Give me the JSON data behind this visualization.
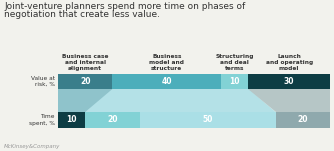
{
  "title_line1": "Joint-venture planners spend more time on phases of",
  "title_line2": "negotiation that create less value.",
  "title_fontsize": 6.5,
  "watermark": "McKinsey&Company",
  "column_labels": [
    "Business case\nand internal\nalignment",
    "Business\nmodel and\nstructure",
    "Structuring\nand deal\nterms",
    "Launch\nand operating\nmodel"
  ],
  "row_labels": [
    "Value at\nrisk, %",
    "Time\nspent, %"
  ],
  "value_at_risk": [
    20,
    40,
    10,
    30
  ],
  "time_spent": [
    10,
    20,
    50,
    20
  ],
  "var_colors": [
    "#3a7e8b",
    "#4caebb",
    "#82d2d5",
    "#0d3d44"
  ],
  "ts_colors": [
    "#0d3d44",
    "#82d2d5",
    "#aadfe6",
    "#8fa9ad"
  ],
  "connector_color": "#aadfe6",
  "bg_color": "#f2f2ed",
  "text_color": "#333333",
  "label_color": "#ffffff",
  "watermark_color": "#999999"
}
